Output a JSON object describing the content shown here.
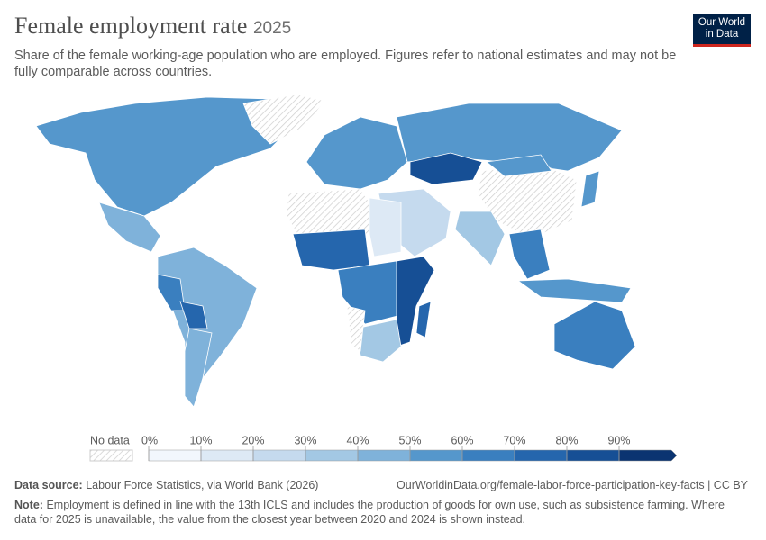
{
  "header": {
    "title": "Female employment rate",
    "year": "2025",
    "subtitle": "Share of the female working-age population who are employed. Figures refer to national estimates and may not be fully comparable across countries.",
    "logo": [
      "Our World",
      "in Data"
    ]
  },
  "chart_data": {
    "type": "choropleth",
    "region_values": [
      57,
      null,
      43,
      45,
      65,
      75,
      47,
      50,
      55,
      85,
      null,
      52,
      22,
      35,
      null,
      15,
      70,
      60,
      80,
      35,
      null,
      72,
      60,
      57,
      50,
      63
    ],
    "legend": {
      "no_data": "No data",
      "xlim": [
        0,
        100
      ],
      "ticks": [
        {
          "value": 0,
          "label": "0%"
        },
        {
          "value": 10,
          "label": "10%"
        },
        {
          "value": 20,
          "label": "20%"
        },
        {
          "value": 30,
          "label": "30%"
        },
        {
          "value": 40,
          "label": "40%"
        },
        {
          "value": 50,
          "label": "50%"
        },
        {
          "value": 60,
          "label": "60%"
        },
        {
          "value": 70,
          "label": "70%"
        },
        {
          "value": 80,
          "label": "80%"
        },
        {
          "value": 90,
          "label": "90%"
        }
      ],
      "colors": [
        "#f2f7fd",
        "#dde9f5",
        "#c5daee",
        "#a3c8e4",
        "#7fb2da",
        "#5597cc",
        "#3a7fbf",
        "#2566ad",
        "#164f95",
        "#0b3471"
      ]
    }
  },
  "footer": {
    "source_label": "Data source:",
    "source": "Labour Force Statistics, via World Bank (2026)",
    "url": "OurWorldinData.org/female-labor-force-participation-key-facts | CC BY",
    "note_label": "Note:",
    "note": "Employment is defined in line with the 13th ICLS and includes the production of goods for own use, such as subsistence farming. Where data for 2025 is unavailable, the value from the closest year between 2020 and 2024 is shown instead."
  }
}
